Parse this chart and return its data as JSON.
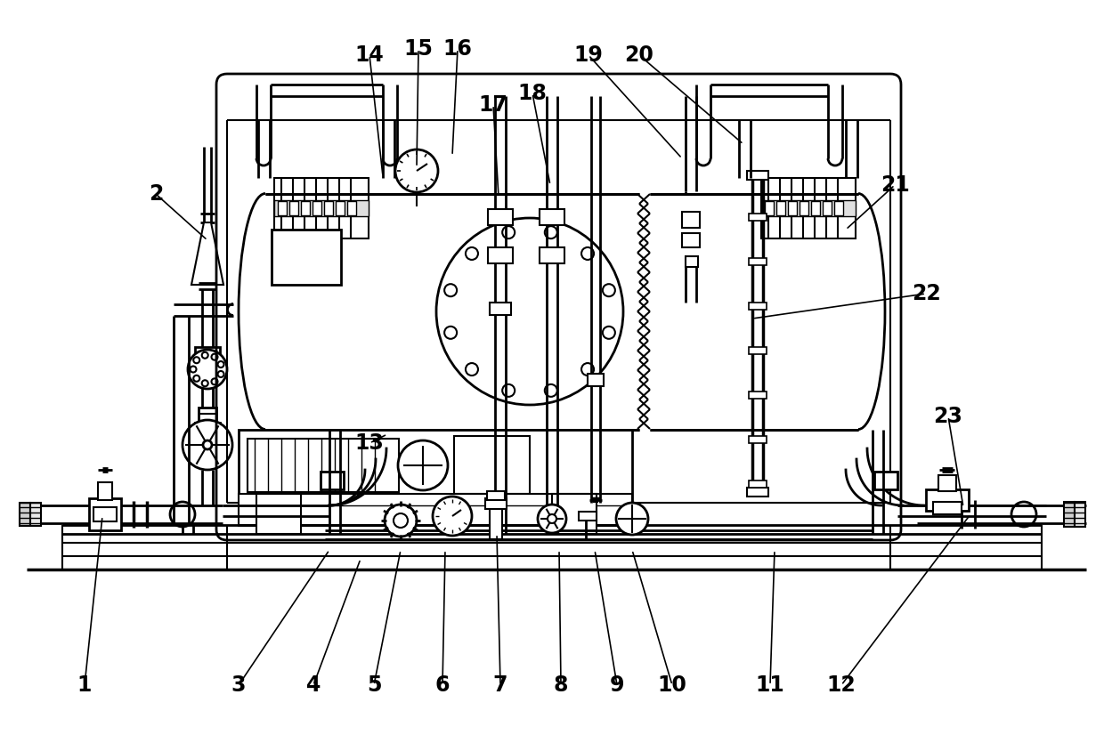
{
  "bg": "#ffffff",
  "lc": "#000000",
  "labels": [
    [
      "1",
      95,
      770
    ],
    [
      "2",
      175,
      218
    ],
    [
      "3",
      268,
      770
    ],
    [
      "4",
      352,
      770
    ],
    [
      "5",
      420,
      770
    ],
    [
      "6",
      497,
      770
    ],
    [
      "7",
      562,
      770
    ],
    [
      "8",
      630,
      770
    ],
    [
      "9",
      693,
      770
    ],
    [
      "10",
      755,
      770
    ],
    [
      "11",
      865,
      770
    ],
    [
      "12",
      945,
      770
    ],
    [
      "13",
      415,
      498
    ],
    [
      "14",
      415,
      62
    ],
    [
      "15",
      470,
      55
    ],
    [
      "16",
      514,
      55
    ],
    [
      "17",
      554,
      118
    ],
    [
      "18",
      598,
      105
    ],
    [
      "19",
      661,
      62
    ],
    [
      "20",
      718,
      62
    ],
    [
      "21",
      1005,
      208
    ],
    [
      "22",
      1040,
      330
    ],
    [
      "23",
      1065,
      468
    ]
  ],
  "leader_lines": [
    [
      115,
      580,
      95,
      770
    ],
    [
      233,
      270,
      175,
      218
    ],
    [
      370,
      618,
      268,
      770
    ],
    [
      405,
      628,
      352,
      770
    ],
    [
      450,
      618,
      420,
      770
    ],
    [
      500,
      618,
      497,
      770
    ],
    [
      558,
      600,
      562,
      770
    ],
    [
      628,
      618,
      630,
      770
    ],
    [
      668,
      618,
      693,
      770
    ],
    [
      710,
      618,
      755,
      770
    ],
    [
      870,
      618,
      865,
      770
    ],
    [
      1090,
      578,
      945,
      770
    ],
    [
      435,
      488,
      415,
      498
    ],
    [
      430,
      198,
      415,
      62
    ],
    [
      468,
      188,
      470,
      55
    ],
    [
      508,
      175,
      514,
      55
    ],
    [
      560,
      222,
      554,
      118
    ],
    [
      618,
      208,
      598,
      105
    ],
    [
      766,
      178,
      661,
      62
    ],
    [
      835,
      162,
      718,
      62
    ],
    [
      950,
      258,
      1005,
      208
    ],
    [
      845,
      358,
      1040,
      330
    ],
    [
      1082,
      570,
      1065,
      468
    ]
  ]
}
